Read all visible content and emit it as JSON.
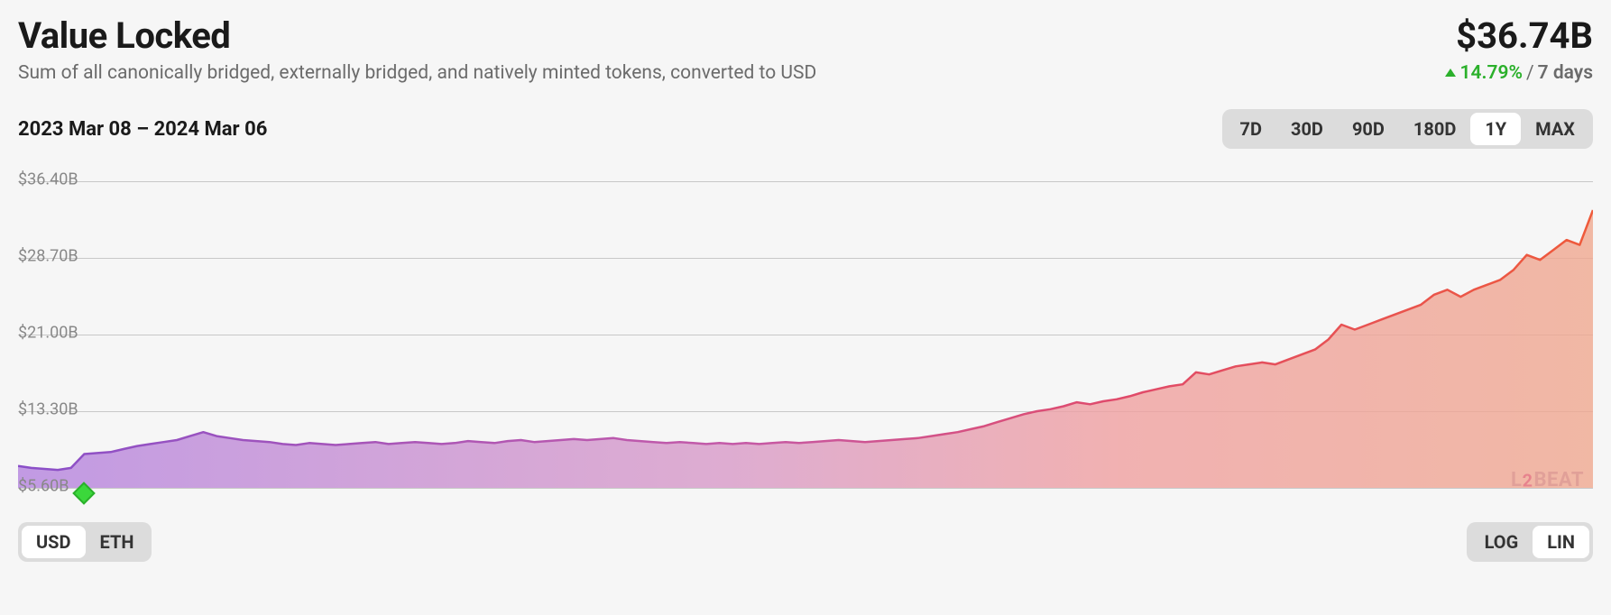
{
  "header": {
    "title": "Value Locked",
    "subtitle": "Sum of all canonically bridged, externally bridged, and natively minted tokens, converted to USD",
    "value": "$36.74B",
    "change_pct": "14.79%",
    "change_direction": "up",
    "change_period": "7 days"
  },
  "date_range": "2023 Mar 08 – 2024 Mar 06",
  "time_ranges": {
    "options": [
      "7D",
      "30D",
      "90D",
      "180D",
      "1Y",
      "MAX"
    ],
    "selected": "1Y"
  },
  "currency_toggle": {
    "options": [
      "USD",
      "ETH"
    ],
    "selected": "USD"
  },
  "scale_toggle": {
    "options": [
      "LOG",
      "LIN"
    ],
    "selected": "LIN"
  },
  "watermark": "L2BEAT",
  "chart": {
    "type": "area",
    "y_axis": {
      "min": 5.6,
      "max": 36.4,
      "ticks": [
        {
          "value": 5.6,
          "label": "$5.60B"
        },
        {
          "value": 13.3,
          "label": "$13.30B"
        },
        {
          "value": 21.0,
          "label": "$21.00B"
        },
        {
          "value": 28.7,
          "label": "$28.70B"
        },
        {
          "value": 36.4,
          "label": "$36.40B"
        }
      ],
      "grid_color": "#c8c8c8"
    },
    "series": {
      "stroke_width": 2.5,
      "gradient_stroke": [
        {
          "offset": 0,
          "color": "#8a4fc8"
        },
        {
          "offset": 0.45,
          "color": "#c45aa8"
        },
        {
          "offset": 0.7,
          "color": "#e04a6a"
        },
        {
          "offset": 1,
          "color": "#ef5a3a"
        }
      ],
      "gradient_fill": [
        {
          "offset": 0,
          "color": "#b88ae0",
          "opacity": 0.85
        },
        {
          "offset": 0.45,
          "color": "#d89ac8",
          "opacity": 0.8
        },
        {
          "offset": 0.7,
          "color": "#f0a0a0",
          "opacity": 0.8
        },
        {
          "offset": 1,
          "color": "#f0a890",
          "opacity": 0.8
        }
      ],
      "values": [
        7.8,
        7.6,
        7.5,
        7.4,
        7.6,
        9.0,
        9.1,
        9.2,
        9.5,
        9.8,
        10.0,
        10.2,
        10.4,
        10.8,
        11.2,
        10.8,
        10.6,
        10.4,
        10.3,
        10.2,
        10.0,
        9.9,
        10.1,
        10.0,
        9.9,
        10.0,
        10.1,
        10.2,
        10.0,
        10.1,
        10.2,
        10.1,
        10.0,
        10.1,
        10.3,
        10.2,
        10.1,
        10.3,
        10.4,
        10.2,
        10.3,
        10.4,
        10.5,
        10.4,
        10.5,
        10.6,
        10.4,
        10.3,
        10.2,
        10.1,
        10.2,
        10.1,
        10.0,
        10.1,
        10.0,
        10.1,
        10.0,
        10.1,
        10.2,
        10.1,
        10.2,
        10.3,
        10.4,
        10.3,
        10.2,
        10.3,
        10.4,
        10.5,
        10.6,
        10.8,
        11.0,
        11.2,
        11.5,
        11.8,
        12.2,
        12.6,
        13.0,
        13.3,
        13.5,
        13.8,
        14.2,
        14.0,
        14.3,
        14.5,
        14.8,
        15.2,
        15.5,
        15.8,
        16.0,
        17.2,
        17.0,
        17.4,
        17.8,
        18.0,
        18.2,
        18.0,
        18.5,
        19.0,
        19.5,
        20.5,
        22.0,
        21.5,
        22.0,
        22.5,
        23.0,
        23.5,
        24.0,
        25.0,
        25.5,
        24.8,
        25.5,
        26.0,
        26.5,
        27.5,
        29.0,
        28.5,
        29.5,
        30.5,
        30.0,
        33.5
      ]
    },
    "marker": {
      "x_index": 5,
      "color_fill": "#3bd83b",
      "color_border": "#2bb02b"
    },
    "background_color": "#f6f6f6"
  }
}
